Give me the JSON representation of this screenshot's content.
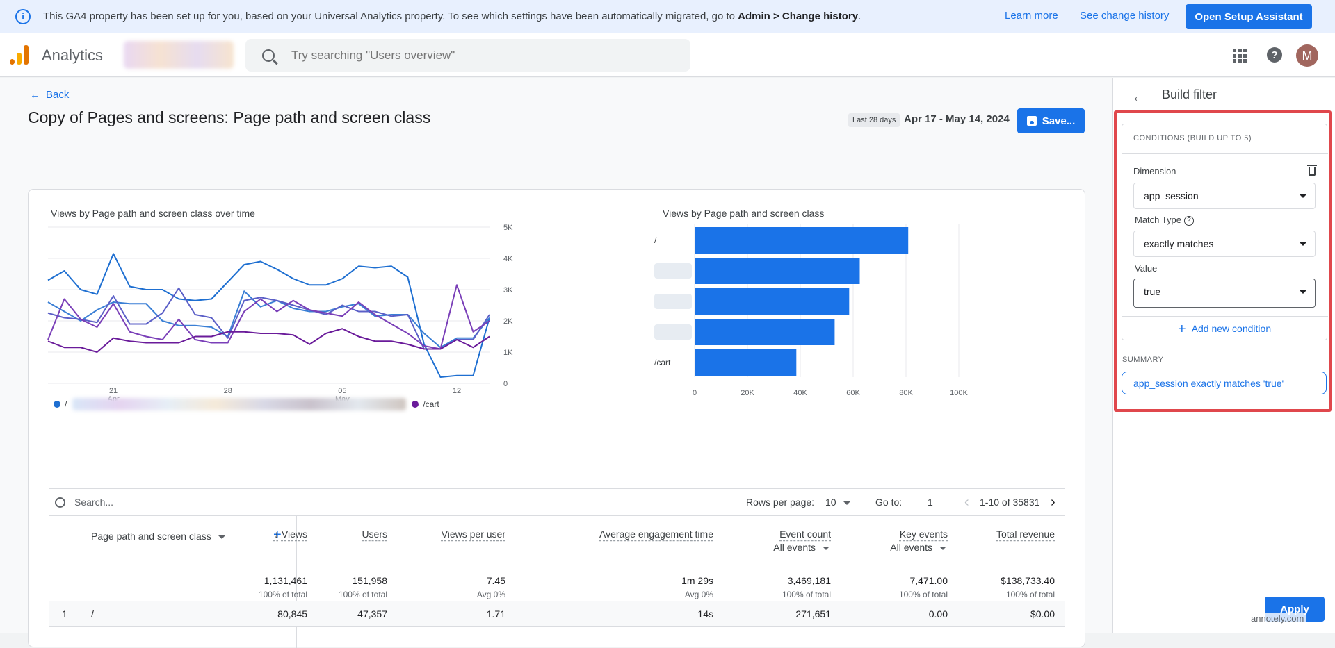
{
  "banner": {
    "message": "This GA4 property has been set up for you, based on your Universal Analytics property. To see which settings have been automatically migrated, go to ",
    "message_bold": "Admin > Change history",
    "message_end": ".",
    "learn_more": "Learn more",
    "see_change_history": "See change history",
    "setup_button": "Open Setup Assistant"
  },
  "header": {
    "app_name": "Analytics",
    "search_placeholder": "Try searching \"Users overview\"",
    "avatar_initial": "M"
  },
  "page": {
    "back_label": "Back",
    "title": "Copy of Pages and screens: Page path and screen class",
    "date_chip": "Last 28 days",
    "date_range": "Apr 17 - May 14, 2024",
    "save_label": "Save..."
  },
  "line_chart_title": "Views by Page path and screen class over time",
  "bar_chart_title": "Views by Page path and screen class",
  "legend": {
    "first": "/",
    "last": "/cart"
  },
  "colors": {
    "accent": "#1a73e8",
    "highlight": "#e0474c",
    "bar": "#1a73e8"
  },
  "chart_data": [
    {
      "type": "line",
      "title": "Views by Page path and screen class over time",
      "x": [
        "Apr 17",
        "Apr 18",
        "Apr 19",
        "Apr 20",
        "Apr 21",
        "Apr 22",
        "Apr 23",
        "Apr 24",
        "Apr 25",
        "Apr 26",
        "Apr 27",
        "Apr 28",
        "Apr 29",
        "Apr 30",
        "May 1",
        "May 2",
        "May 3",
        "May 4",
        "May 5",
        "May 6",
        "May 7",
        "May 8",
        "May 9",
        "May 10",
        "May 11",
        "May 12",
        "May 13",
        "May 14"
      ],
      "x_tick_labels": [
        {
          "label": "21",
          "sub": "Apr"
        },
        {
          "label": "28",
          "sub": ""
        },
        {
          "label": "05",
          "sub": "May"
        },
        {
          "label": "12",
          "sub": ""
        }
      ],
      "y_ticks": [
        "5K",
        "4K",
        "3K",
        "2K",
        "1K",
        "0"
      ],
      "ylim": [
        0,
        5000
      ],
      "series": [
        {
          "name": "/",
          "color": "#1e6fd1",
          "values": [
            3300,
            3600,
            3000,
            2850,
            4150,
            3100,
            3000,
            3000,
            2700,
            2650,
            2700,
            3250,
            3800,
            3900,
            3650,
            3350,
            3150,
            3150,
            3350,
            3750,
            3700,
            3750,
            3400,
            1250,
            200,
            250,
            250,
            2100
          ]
        },
        {
          "name": "",
          "color": "#3a7fd5",
          "values": [
            2600,
            2300,
            2000,
            2350,
            2600,
            2550,
            2550,
            2000,
            1850,
            1850,
            1800,
            1500,
            2950,
            2450,
            2650,
            2400,
            2300,
            2300,
            2450,
            2550,
            2150,
            2200,
            2200,
            1600,
            1150,
            1450,
            1450,
            2100
          ]
        },
        {
          "name": "",
          "color": "#5b5fc7",
          "values": [
            2250,
            2100,
            2050,
            1950,
            2800,
            1900,
            1900,
            2250,
            3050,
            2200,
            2100,
            1450,
            2650,
            2750,
            2650,
            2500,
            2350,
            2200,
            2500,
            2300,
            2300,
            2150,
            2200,
            1100,
            1100,
            1400,
            1400,
            2200
          ]
        },
        {
          "name": "",
          "color": "#7a3fb8",
          "values": [
            1400,
            2700,
            2050,
            1800,
            2550,
            1650,
            1500,
            1400,
            2050,
            1400,
            1300,
            1300,
            2300,
            2700,
            2300,
            2650,
            2350,
            2250,
            2150,
            2600,
            2200,
            1900,
            1600,
            1200,
            1100,
            3150,
            1650,
            2000
          ]
        },
        {
          "name": "/cart",
          "color": "#6a1b9a",
          "values": [
            1350,
            1150,
            1150,
            1000,
            1450,
            1350,
            1300,
            1300,
            1300,
            1500,
            1500,
            1650,
            1650,
            1600,
            1600,
            1550,
            1250,
            1600,
            1750,
            1500,
            1350,
            1350,
            1250,
            1100,
            1100,
            1400,
            1150,
            1500
          ]
        }
      ]
    },
    {
      "type": "bar",
      "title": "Views by Page path and screen class",
      "categories": [
        "/",
        "",
        "",
        "",
        "/cart"
      ],
      "values": [
        80845,
        62500,
        58500,
        53000,
        38500
      ],
      "x_ticks": [
        "0",
        "20K",
        "40K",
        "60K",
        "80K",
        "100K"
      ],
      "xlim": [
        0,
        100000
      ]
    }
  ],
  "table": {
    "search_placeholder": "Search...",
    "rows_per_page_label": "Rows per page:",
    "rows_per_page_value": "10",
    "goto_label": "Go to:",
    "goto_value": "1",
    "range": "1-10 of 35831",
    "dimension_header": "Page path and screen class",
    "columns": [
      {
        "label": "Views",
        "sub": "",
        "total": "1,131,461",
        "total_sub": "100% of total"
      },
      {
        "label": "Users",
        "sub": "",
        "total": "151,958",
        "total_sub": "100% of total"
      },
      {
        "label": "Views per user",
        "sub": "",
        "total": "7.45",
        "total_sub": "Avg 0%"
      },
      {
        "label": "Average engagement time",
        "sub": "",
        "total": "1m 29s",
        "total_sub": "Avg 0%"
      },
      {
        "label": "Event count",
        "sub": "All events",
        "total": "3,469,181",
        "total_sub": "100% of total"
      },
      {
        "label": "Key events",
        "sub": "All events",
        "total": "7,471.00",
        "total_sub": "100% of total"
      },
      {
        "label": "Total revenue",
        "sub": "",
        "total": "$138,733.40",
        "total_sub": "100% of total"
      }
    ],
    "rows": [
      {
        "index": "1",
        "dimension": "/",
        "cells": [
          "80,845",
          "47,357",
          "1.71",
          "14s",
          "271,651",
          "0.00",
          "$0.00"
        ]
      }
    ]
  },
  "panel": {
    "title": "Build filter",
    "conditions_header": "CONDITIONS (BUILD UP TO 5)",
    "dimension_label": "Dimension",
    "dimension_value": "app_session",
    "match_type_label": "Match Type",
    "match_type_value": "exactly matches",
    "value_label": "Value",
    "value_value": "true",
    "add_condition": "Add new condition",
    "summary_label": "SUMMARY",
    "summary_value": "app_session exactly matches 'true'",
    "apply_label": "Apply",
    "watermark": "annotely.com"
  }
}
